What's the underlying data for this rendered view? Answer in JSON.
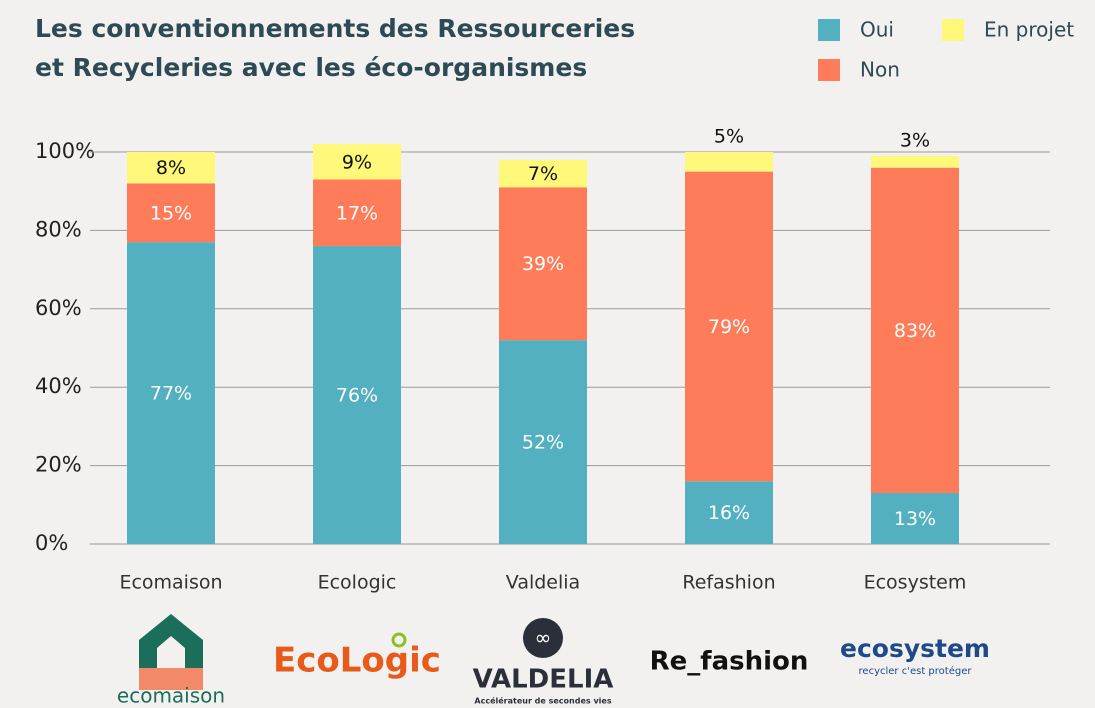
{
  "chart_data": {
    "type": "stacked_bar",
    "title_lines": [
      "Les conventionnements des Ressourceries",
      "et Recycleries avec les éco-organismes"
    ],
    "categories": [
      "Ecomaison",
      "Ecologic",
      "Valdelia",
      "Refashion",
      "Ecosystem"
    ],
    "series": [
      {
        "name": "Oui",
        "color": "#52b0c0",
        "values": [
          77,
          76,
          52,
          16,
          13
        ],
        "value_labels": [
          "77%",
          "76%",
          "52%",
          "16%",
          "13%"
        ]
      },
      {
        "name": "Non",
        "color": "#ff7c5a",
        "values": [
          15,
          17,
          39,
          79,
          83
        ],
        "value_labels": [
          "15%",
          "17%",
          "39%",
          "79%",
          "83%"
        ]
      },
      {
        "name": "En projet",
        "color": "#fff87a",
        "values": [
          8,
          9,
          7,
          5,
          3
        ],
        "value_labels": [
          "8%",
          "9%",
          "7%",
          "5%",
          "3%"
        ]
      }
    ],
    "ylim": [
      0,
      100
    ],
    "yticks": [
      {
        "value": 0,
        "label": "0%"
      },
      {
        "value": 20,
        "label": "20%"
      },
      {
        "value": 40,
        "label": "40%"
      },
      {
        "value": 60,
        "label": "60%"
      },
      {
        "value": 80,
        "label": "80%"
      },
      {
        "value": 100,
        "label": "100%"
      }
    ],
    "grid": true
  },
  "logos": [
    {
      "text": "ecomaison"
    },
    {
      "text": "EcoLogic"
    },
    {
      "text": "VALDELIA",
      "tagline": "Accélérateur de secondes vies"
    },
    {
      "text": "Re_fashion"
    },
    {
      "text": "ecosystem",
      "tagline": "recycler c'est protéger"
    }
  ]
}
